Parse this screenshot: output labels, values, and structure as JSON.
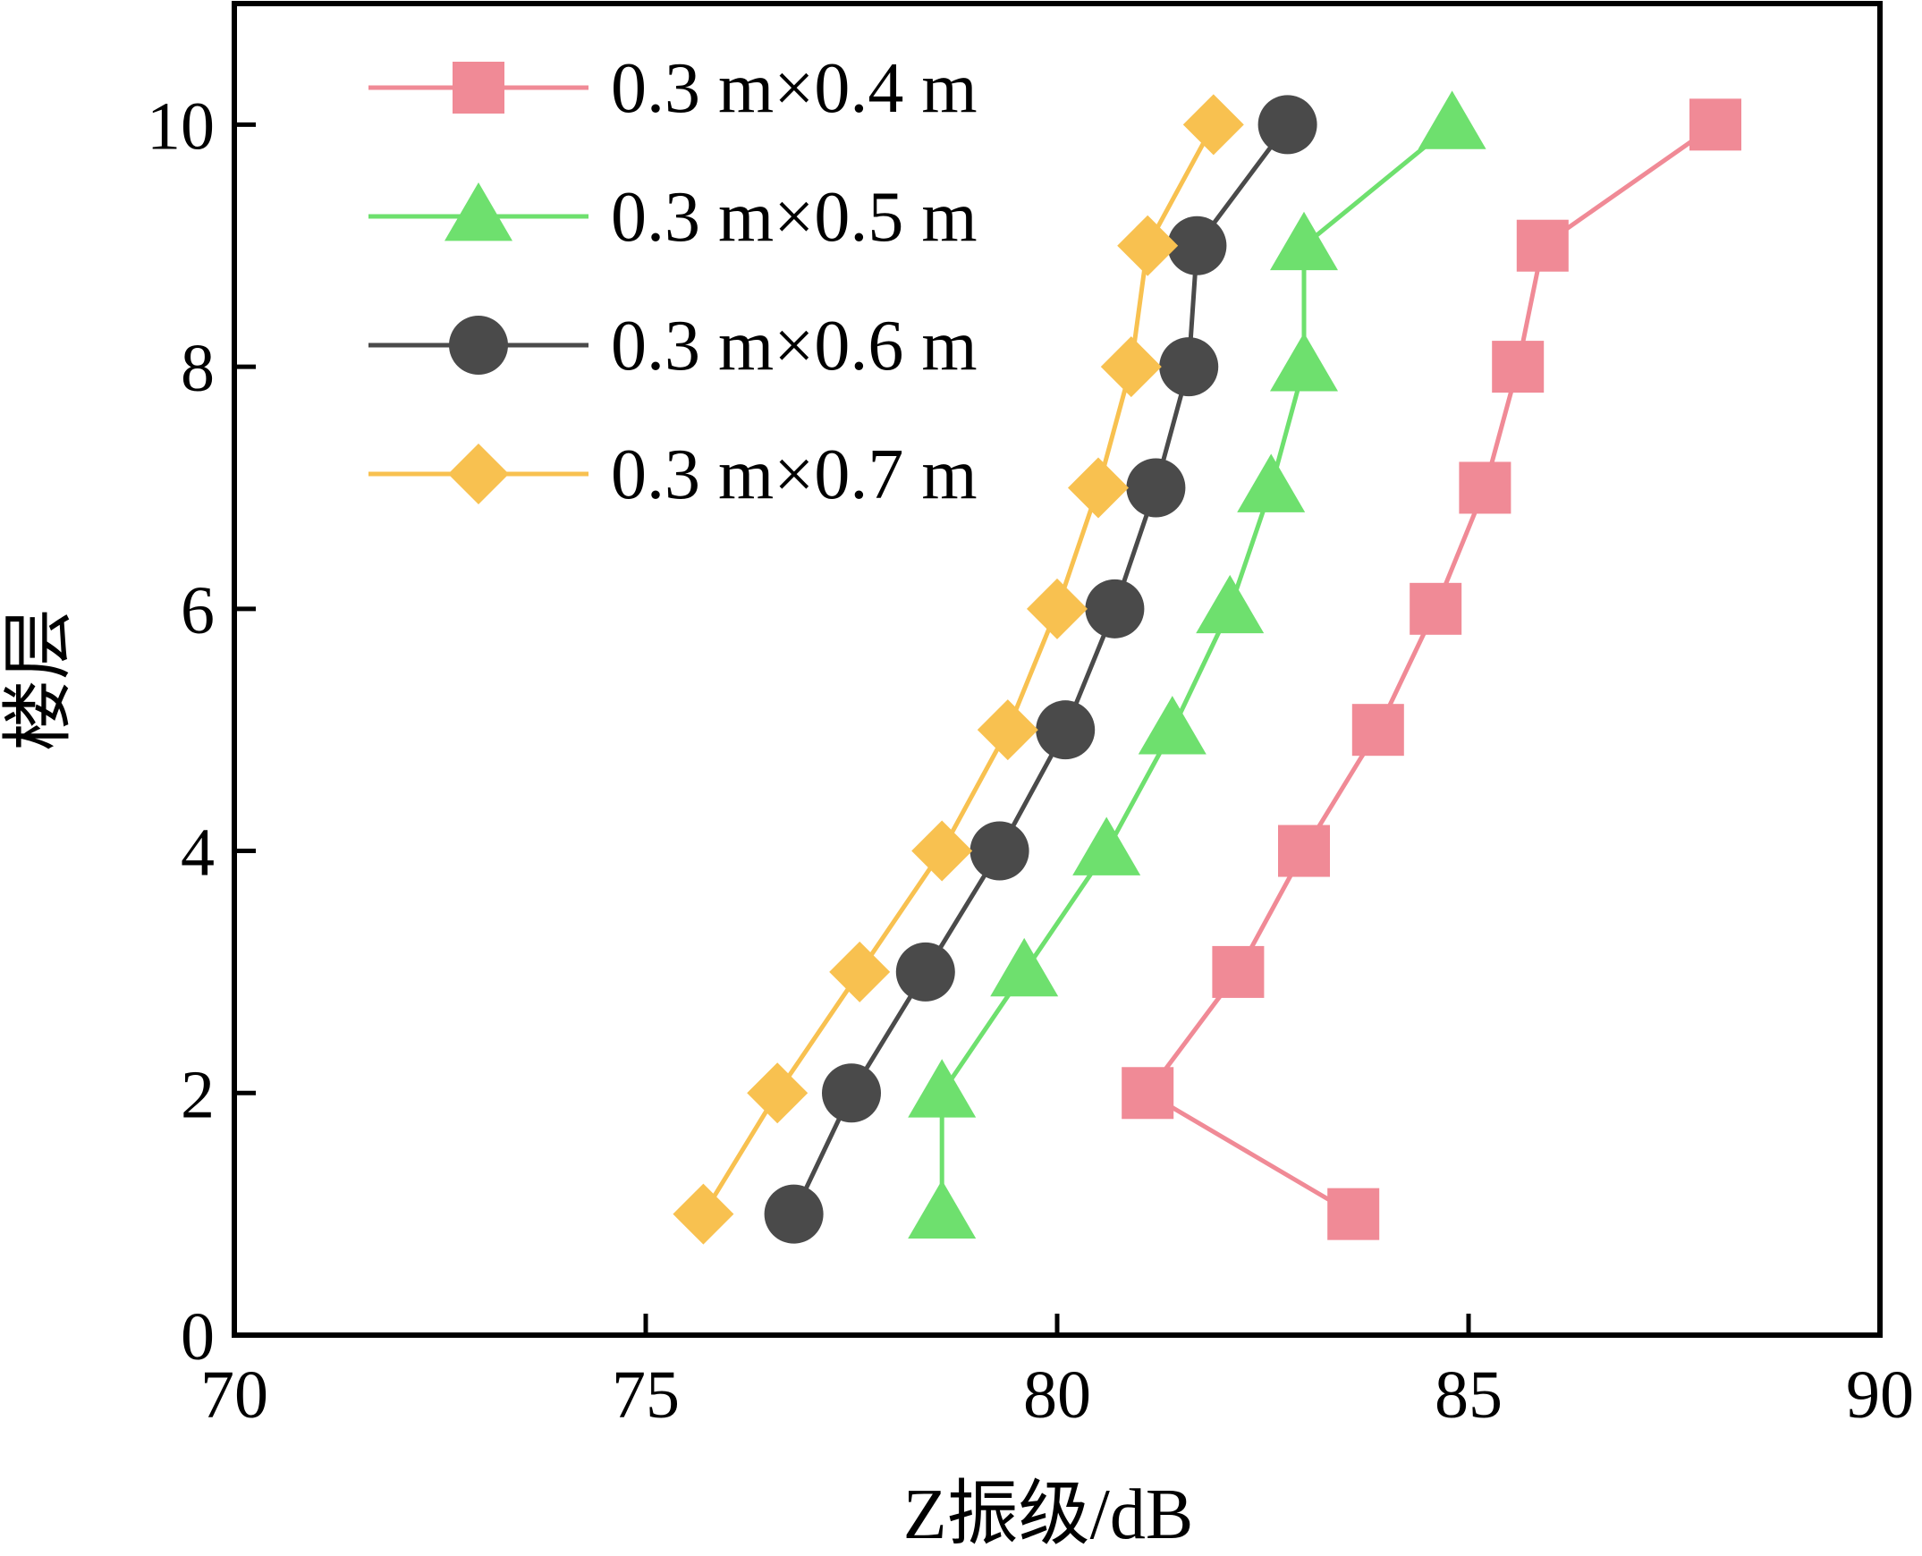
{
  "chart_data": {
    "type": "line",
    "title": "",
    "xlabel": "Z振级/dB",
    "ylabel": "楼层",
    "xlim": [
      70,
      90
    ],
    "ylim": [
      0,
      11
    ],
    "xticks": [
      70,
      75,
      80,
      85,
      90
    ],
    "yticks": [
      0,
      2,
      4,
      6,
      8,
      10
    ],
    "grid": false,
    "legend_position": "top-left",
    "series": [
      {
        "name": "0.3 m×0.4 m",
        "color": "#F08A96",
        "marker": "square",
        "x": [
          83.6,
          81.1,
          82.2,
          83.0,
          83.9,
          84.6,
          85.2,
          85.6,
          85.9,
          88.0
        ],
        "y": [
          1,
          2,
          3,
          4,
          5,
          6,
          7,
          8,
          9,
          10
        ]
      },
      {
        "name": "0.3 m×0.5 m",
        "color": "#6EE06E",
        "marker": "triangle",
        "x": [
          78.6,
          78.6,
          79.6,
          80.6,
          81.4,
          82.1,
          82.6,
          83.0,
          83.0,
          84.8
        ],
        "y": [
          1,
          2,
          3,
          4,
          5,
          6,
          7,
          8,
          9,
          10
        ]
      },
      {
        "name": "0.3 m×0.6 m",
        "color": "#4A4A4A",
        "marker": "circle",
        "x": [
          76.8,
          77.5,
          78.4,
          79.3,
          80.1,
          80.7,
          81.2,
          81.6,
          81.7,
          82.8
        ],
        "y": [
          1,
          2,
          3,
          4,
          5,
          6,
          7,
          8,
          9,
          10
        ]
      },
      {
        "name": "0.3 m×0.7 m",
        "color": "#F8C150",
        "marker": "diamond",
        "x": [
          75.7,
          76.6,
          77.6,
          78.6,
          79.4,
          80.0,
          80.5,
          80.9,
          81.1,
          81.9
        ],
        "y": [
          1,
          2,
          3,
          4,
          5,
          6,
          7,
          8,
          9,
          10
        ]
      }
    ]
  }
}
